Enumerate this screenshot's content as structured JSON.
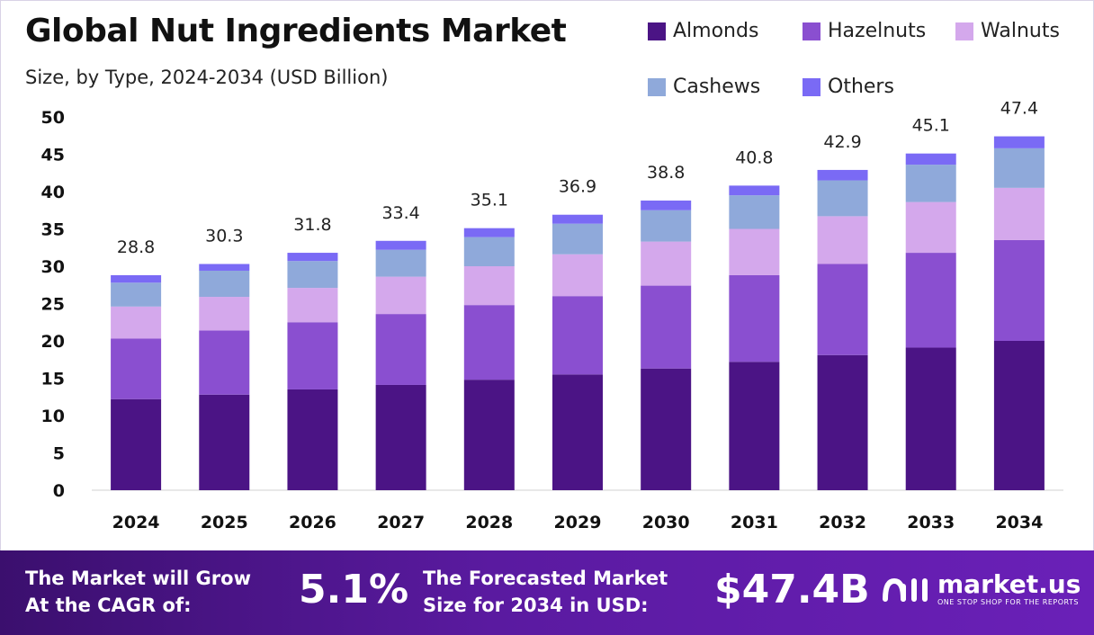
{
  "header": {
    "title": "Global Nut Ingredients Market",
    "subtitle": "Size, by Type, 2024-2034 (USD Billion)"
  },
  "colors": {
    "Almonds": "#4b1485",
    "Hazelnuts": "#8a4fd0",
    "Walnuts": "#d4a8ec",
    "Cashews": "#8fa9da",
    "Others": "#7a6af5",
    "footer": "#5a1aa0"
  },
  "chart_data": {
    "type": "bar",
    "stacked": true,
    "categories": [
      "2024",
      "2025",
      "2026",
      "2027",
      "2028",
      "2029",
      "2030",
      "2031",
      "2032",
      "2033",
      "2034"
    ],
    "series": [
      {
        "name": "Almonds",
        "values": [
          12.2,
          12.8,
          13.5,
          14.1,
          14.8,
          15.5,
          16.3,
          17.2,
          18.1,
          19.1,
          20.0
        ]
      },
      {
        "name": "Hazelnuts",
        "values": [
          8.1,
          8.6,
          9.0,
          9.5,
          10.0,
          10.5,
          11.1,
          11.6,
          12.2,
          12.7,
          13.5
        ]
      },
      {
        "name": "Walnuts",
        "values": [
          4.3,
          4.5,
          4.6,
          5.0,
          5.2,
          5.6,
          5.9,
          6.2,
          6.4,
          6.8,
          7.0
        ]
      },
      {
        "name": "Cashews",
        "values": [
          3.2,
          3.5,
          3.6,
          3.6,
          3.9,
          4.1,
          4.2,
          4.5,
          4.8,
          5.0,
          5.3
        ]
      },
      {
        "name": "Others",
        "values": [
          1.0,
          0.9,
          1.1,
          1.2,
          1.2,
          1.2,
          1.3,
          1.3,
          1.4,
          1.5,
          1.6
        ]
      }
    ],
    "totals": [
      "28.8",
      "30.3",
      "31.8",
      "33.4",
      "35.1",
      "36.9",
      "38.8",
      "40.8",
      "42.9",
      "45.1",
      "47.4"
    ],
    "y_ticks": [
      "0",
      "5",
      "10",
      "15",
      "20",
      "25",
      "30",
      "35",
      "40",
      "45",
      "50"
    ],
    "ylim": [
      0,
      50
    ],
    "grid": false,
    "legend_position": "top-right"
  },
  "footer": {
    "cagr_label_line1": "The Market will Grow",
    "cagr_label_line2": "At the CAGR of:",
    "cagr_value": "5.1%",
    "forecast_label_line1": "The Forecasted Market",
    "forecast_label_line2": "Size for 2034 in USD:",
    "forecast_value": "$47.4B",
    "brand_name": "market.us",
    "brand_tagline": "ONE STOP SHOP FOR THE REPORTS"
  }
}
